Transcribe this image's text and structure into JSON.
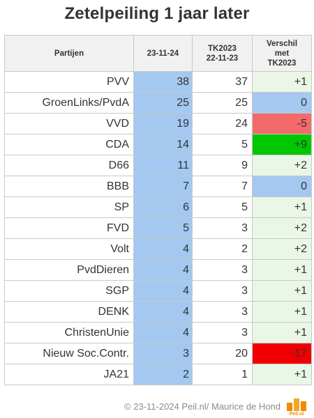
{
  "chart_data": {
    "type": "table",
    "title": "Zetelpeiling 1 jaar later",
    "columns": [
      {
        "lines": [
          "Partijen"
        ]
      },
      {
        "lines": [
          "23-11-24"
        ]
      },
      {
        "lines": [
          "TK2023",
          "22-11-23"
        ]
      },
      {
        "lines": [
          "Verschil",
          "met",
          "TK2023"
        ]
      }
    ],
    "rows": [
      {
        "party": "PVV",
        "current": "38",
        "previous": "37",
        "diff": "+1",
        "diff_color": "#eaf6e6"
      },
      {
        "party": "GroenLinks/PvdA",
        "current": "25",
        "previous": "25",
        "diff": "0",
        "diff_color": "#a4c8f0"
      },
      {
        "party": "VVD",
        "current": "19",
        "previous": "24",
        "diff": "-5",
        "diff_color": "#f26a6a"
      },
      {
        "party": "CDA",
        "current": "14",
        "previous": "5",
        "diff": "+9",
        "diff_color": "#00c800"
      },
      {
        "party": "D66",
        "current": "11",
        "previous": "9",
        "diff": "+2",
        "diff_color": "#eaf6e6"
      },
      {
        "party": "BBB",
        "current": "7",
        "previous": "7",
        "diff": "0",
        "diff_color": "#a4c8f0"
      },
      {
        "party": "SP",
        "current": "6",
        "previous": "5",
        "diff": "+1",
        "diff_color": "#eaf6e6"
      },
      {
        "party": "FVD",
        "current": "5",
        "previous": "3",
        "diff": "+2",
        "diff_color": "#eaf6e6"
      },
      {
        "party": "Volt",
        "current": "4",
        "previous": "2",
        "diff": "+2",
        "diff_color": "#eaf6e6"
      },
      {
        "party": "PvdDieren",
        "current": "4",
        "previous": "3",
        "diff": "+1",
        "diff_color": "#eaf6e6"
      },
      {
        "party": "SGP",
        "current": "4",
        "previous": "3",
        "diff": "+1",
        "diff_color": "#eaf6e6"
      },
      {
        "party": "DENK",
        "current": "4",
        "previous": "3",
        "diff": "+1",
        "diff_color": "#eaf6e6"
      },
      {
        "party": "ChristenUnie",
        "current": "4",
        "previous": "3",
        "diff": "+1",
        "diff_color": "#eaf6e6"
      },
      {
        "party": "Nieuw Soc.Contr.",
        "current": "3",
        "previous": "20",
        "diff": "-17",
        "diff_color": "#f00000"
      },
      {
        "party": "JA21",
        "current": "2",
        "previous": "1",
        "diff": "+1",
        "diff_color": "#eaf6e6"
      }
    ]
  },
  "footer": {
    "credit": "© 23-11-2024 Peil.nl/ Maurice de Hond",
    "logo_text": "Peil.nl"
  },
  "colors": {
    "current_column": "#a4c8f0",
    "header_bg": "#f1f1f1",
    "logo_orange": "#f08a00"
  }
}
